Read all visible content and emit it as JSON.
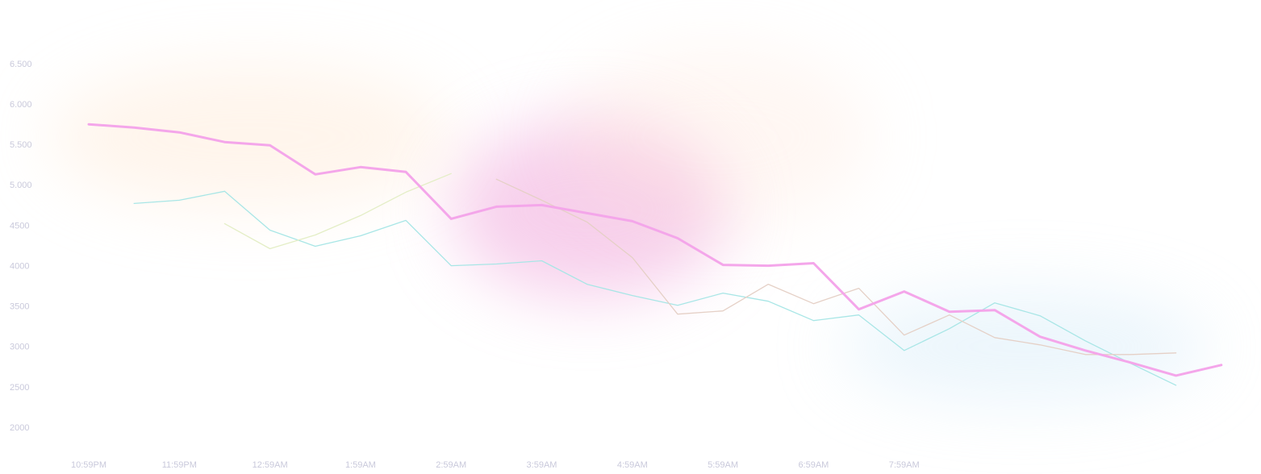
{
  "chart_data": {
    "type": "line",
    "categories": [
      "10:59PM",
      null,
      "11:59PM",
      null,
      "12:59AM",
      null,
      "1:59AM",
      null,
      "2:59AM",
      null,
      "3:59AM",
      null,
      "4:59AM",
      null,
      "5:59AM",
      null,
      "6:59AM",
      null,
      "7:59AM",
      null,
      null,
      null,
      null,
      null,
      null,
      null
    ],
    "series": [
      {
        "color": "#a8e6e6",
        "width": 1.3,
        "values": [
          null,
          4780,
          4820,
          4930,
          4450,
          4250,
          4380,
          4570,
          4010,
          4030,
          4070,
          3780,
          3640,
          3520,
          3670,
          3570,
          3330,
          3400,
          2960,
          3230,
          3550,
          3390,
          3080,
          2800,
          2530,
          null
        ]
      },
      {
        "color": "#e4eec6",
        "width": 1.3,
        "values": [
          null,
          null,
          null,
          4530,
          4220,
          4390,
          4630,
          4920,
          5150,
          null,
          null,
          null,
          null,
          null,
          null,
          null,
          null,
          null,
          null,
          null,
          null,
          null,
          null,
          null,
          null,
          null
        ]
      },
      {
        "color": "#e5d0c6",
        "width": 1.3,
        "values": [
          null,
          null,
          null,
          null,
          null,
          null,
          null,
          null,
          null,
          5080,
          4820,
          4550,
          4110,
          3410,
          3450,
          3780,
          3540,
          3730,
          3150,
          3400,
          3120,
          3030,
          2910,
          2910,
          2930,
          null
        ]
      },
      {
        "color": "#f4a6ea",
        "width": 3,
        "values": [
          5760,
          5720,
          5660,
          5540,
          5500,
          5140,
          5230,
          5170,
          4590,
          4740,
          4760,
          4660,
          4560,
          4350,
          4020,
          4010,
          4040,
          3470,
          3690,
          3440,
          3460,
          3130,
          2960,
          2810,
          2650,
          2780
        ]
      }
    ],
    "ylim": [
      2000,
      6500
    ],
    "yticks": [
      {
        "value": 6500,
        "label": "6.500"
      },
      {
        "value": 6000,
        "label": "6.000"
      },
      {
        "value": 5500,
        "label": "5.500"
      },
      {
        "value": 5000,
        "label": "5.000"
      },
      4500,
      4000,
      3500,
      3000,
      2500,
      2000
    ]
  }
}
